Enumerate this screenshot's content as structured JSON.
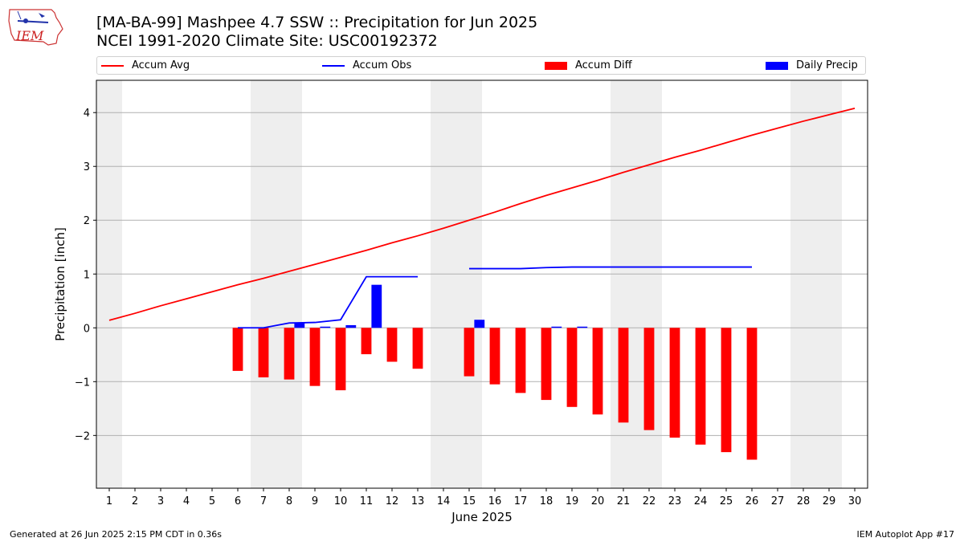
{
  "header": {
    "title_line1": "[MA-BA-99] Mashpee 4.7 SSW :: Precipitation for Jun 2025",
    "title_line2": "NCEI 1991-2020 Climate Site: USC00192372",
    "logo_text": "IEM"
  },
  "footer": {
    "generated": "Generated at 26 Jun 2025 2:15 PM CDT in 0.36s",
    "app": "IEM Autoplot App #17"
  },
  "chart_data": {
    "type": "bar",
    "xlabel": "June 2025",
    "ylabel": "Precipitation [inch]",
    "xlim": [
      0.5,
      30.5
    ],
    "ylim": [
      -2.98,
      4.6
    ],
    "x_ticks": [
      1,
      2,
      3,
      4,
      5,
      6,
      7,
      8,
      9,
      10,
      11,
      12,
      13,
      14,
      15,
      16,
      17,
      18,
      19,
      20,
      21,
      22,
      23,
      24,
      25,
      26,
      27,
      28,
      29,
      30
    ],
    "y_ticks": [
      4,
      3,
      2,
      1,
      0,
      -1,
      -2
    ],
    "grid": "y",
    "legend_placement": "top",
    "weekend_shading_days": [
      1,
      7,
      8,
      14,
      15,
      21,
      22,
      28,
      29
    ],
    "colors": {
      "avg": "#ff0000",
      "obs": "#0000ff",
      "diff": "#ff0000",
      "daily": "#0000ff",
      "weekend": "#eeeeee",
      "grid": "#b0b0b0"
    },
    "series": [
      {
        "name": "Accum Avg",
        "kind": "line",
        "x": [
          1,
          2,
          3,
          4,
          5,
          6,
          7,
          8,
          9,
          10,
          11,
          12,
          13,
          14,
          15,
          16,
          17,
          18,
          19,
          20,
          21,
          22,
          23,
          24,
          25,
          26,
          27,
          28,
          29,
          30
        ],
        "values": [
          0.14,
          0.27,
          0.41,
          0.54,
          0.67,
          0.8,
          0.92,
          1.05,
          1.18,
          1.31,
          1.44,
          1.58,
          1.71,
          1.85,
          2.0,
          2.15,
          2.31,
          2.46,
          2.6,
          2.74,
          2.89,
          3.03,
          3.17,
          3.3,
          3.44,
          3.58,
          3.71,
          3.84,
          3.96,
          4.08
        ]
      },
      {
        "name": "Accum Obs",
        "kind": "line",
        "segments": [
          {
            "x": [
              6,
              7,
              8,
              9,
              10,
              11,
              12,
              13
            ],
            "values": [
              0.0,
              0.0,
              0.09,
              0.1,
              0.15,
              0.95,
              0.95,
              0.95
            ]
          },
          {
            "x": [
              15,
              16,
              17,
              18,
              19,
              20,
              21,
              22,
              23,
              24,
              25,
              26
            ],
            "values": [
              1.1,
              1.1,
              1.1,
              1.12,
              1.13,
              1.13,
              1.13,
              1.13,
              1.13,
              1.13,
              1.13,
              1.13
            ]
          }
        ]
      },
      {
        "name": "Accum Diff",
        "kind": "bar",
        "x": [
          6,
          7,
          8,
          9,
          10,
          11,
          12,
          13,
          15,
          16,
          17,
          18,
          19,
          20,
          21,
          22,
          23,
          24,
          25,
          26
        ],
        "values": [
          -0.8,
          -0.92,
          -0.96,
          -1.08,
          -1.16,
          -0.49,
          -0.63,
          -0.76,
          -0.9,
          -1.05,
          -1.21,
          -1.34,
          -1.47,
          -1.61,
          -1.76,
          -1.9,
          -2.04,
          -2.17,
          -2.31,
          -2.45
        ]
      },
      {
        "name": "Daily Precip",
        "kind": "bar",
        "x": [
          6,
          7,
          8,
          9,
          10,
          11,
          12,
          13,
          15,
          16,
          17,
          18,
          19,
          20,
          21,
          22,
          23,
          24,
          25,
          26
        ],
        "values": [
          0.0,
          0.0,
          0.09,
          0.01,
          0.05,
          0.8,
          0.0,
          0.0,
          0.15,
          0.0,
          0.0,
          0.02,
          0.01,
          0.0,
          0.0,
          0.0,
          0.0,
          0.0,
          0.0,
          0.0
        ]
      }
    ]
  }
}
